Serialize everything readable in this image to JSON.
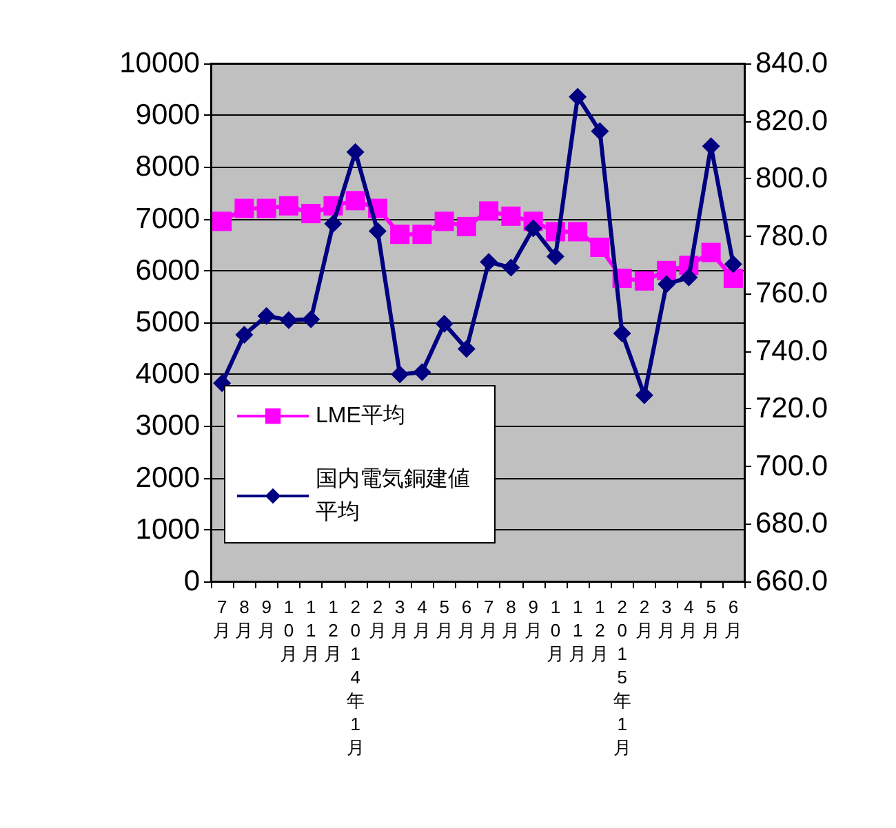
{
  "chart_data": {
    "type": "line",
    "categories": [
      "7月",
      "8月",
      "9月",
      "10月",
      "11月",
      "12月",
      "2014年1月",
      "2月",
      "3月",
      "4月",
      "5月",
      "6月",
      "7月",
      "8月",
      "9月",
      "10月",
      "11月",
      "12月",
      "2015年1月",
      "2月",
      "3月",
      "4月",
      "5月",
      "6月"
    ],
    "series": [
      {
        "name": "LME平均",
        "color": "#ff00ff",
        "marker": "square",
        "values": [
          6950,
          7200,
          7200,
          7250,
          7100,
          7250,
          7350,
          7200,
          6700,
          6700,
          6950,
          6850,
          7150,
          7050,
          6950,
          6750,
          6750,
          6450,
          5850,
          5800,
          6000,
          6100,
          6350,
          5850
        ]
      },
      {
        "name": "国内電気銅建値平均",
        "color": "#000080",
        "marker": "diamond",
        "axis": "y2",
        "values": [
          728.9,
          745.7,
          752.2,
          750.8,
          751.1,
          784.3,
          809.2,
          781.7,
          731.9,
          732.7,
          749.5,
          740.8,
          771.0,
          769.0,
          782.7,
          772.9,
          828.4,
          816.4,
          746.2,
          724.7,
          763.3,
          765.6,
          811.2,
          770.2
        ]
      }
    ],
    "ylim": [
      0,
      10000
    ],
    "yticks": [
      0,
      1000,
      2000,
      3000,
      4000,
      5000,
      6000,
      7000,
      8000,
      9000,
      10000
    ],
    "y2lim": [
      660,
      840
    ],
    "y2ticks": [
      {
        "value": 660,
        "label": "660.0"
      },
      {
        "value": 680,
        "label": "680.0"
      },
      {
        "value": 700,
        "label": "700.0"
      },
      {
        "value": 720,
        "label": "720.0"
      },
      {
        "value": 740,
        "label": "740.0"
      },
      {
        "value": 760,
        "label": "760.0"
      },
      {
        "value": 780,
        "label": "780.0"
      },
      {
        "value": 800,
        "label": "800.0"
      },
      {
        "value": 820,
        "label": "820.0"
      },
      {
        "value": 840,
        "label": "840.0"
      }
    ],
    "grid": "y",
    "legend": "bottom left",
    "line_style": "solid"
  }
}
